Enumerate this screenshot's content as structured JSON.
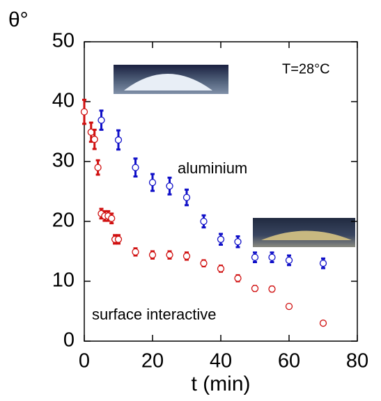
{
  "chart_data": {
    "type": "scatter",
    "y_label": "θ°",
    "x_label": "t (min)",
    "annotation": "T=28°C",
    "xlim": [
      0,
      80
    ],
    "ylim": [
      0,
      50
    ],
    "xticks": [
      0,
      20,
      40,
      60,
      80
    ],
    "yticks": [
      0,
      10,
      20,
      30,
      40,
      50
    ],
    "series": [
      {
        "name": "aluminium",
        "color": "#1010c8",
        "x": [
          5,
          10,
          15,
          20,
          25,
          30,
          35,
          40,
          45,
          50,
          55,
          60,
          70
        ],
        "values": [
          36.9,
          33.6,
          29.0,
          26.5,
          25.9,
          24.0,
          20.0,
          17.0,
          16.6,
          14.0,
          14.0,
          13.5,
          13.0
        ],
        "errors": [
          1.6,
          1.6,
          1.5,
          1.4,
          1.4,
          1.3,
          1.0,
          0.9,
          0.9,
          0.8,
          0.8,
          0.8,
          0.8
        ]
      },
      {
        "name": "surface interactive",
        "color": "#d01010",
        "x": [
          0,
          2,
          3,
          4,
          5,
          6,
          7,
          8,
          9,
          10,
          15,
          20,
          25,
          30,
          35,
          40,
          45,
          50,
          55,
          60,
          70
        ],
        "values": [
          38.3,
          34.9,
          33.7,
          29.0,
          21.3,
          20.9,
          20.9,
          20.5,
          17.0,
          17.0,
          14.9,
          14.4,
          14.4,
          14.2,
          13.0,
          12.1,
          10.5,
          8.8,
          8.7,
          5.8,
          3.0
        ],
        "errors": [
          2.0,
          1.6,
          1.6,
          1.2,
          0.8,
          0.8,
          0.8,
          0.8,
          0.7,
          0.7,
          0.6,
          0.6,
          0.6,
          0.6,
          0.5,
          0.5,
          0.5,
          0.4,
          0.4,
          0.3,
          0.2
        ]
      }
    ]
  }
}
